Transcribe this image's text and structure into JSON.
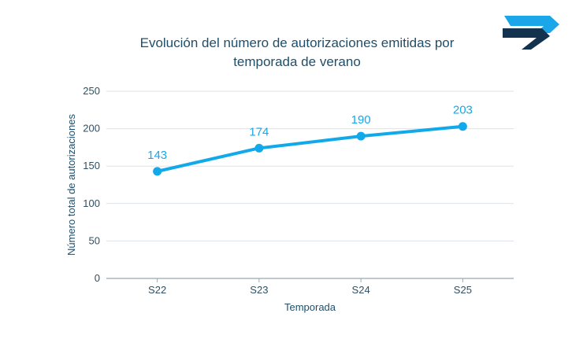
{
  "chart_data": {
    "type": "line",
    "title_lines": [
      "Evolución del número de autorizaciones emitidas por",
      "temporada de verano"
    ],
    "xlabel": "Temporada",
    "ylabel": "Número total de autorizaciones",
    "categories": [
      "S22",
      "S23",
      "S24",
      "S25"
    ],
    "series": [
      {
        "values": [
          143,
          174,
          190,
          203
        ]
      }
    ],
    "ylim": [
      0,
      250
    ],
    "yticks": [
      0,
      50,
      100,
      150,
      200,
      250
    ],
    "grid": true,
    "data_labels": true
  },
  "colors": {
    "line": "#12a9eb",
    "data_label": "#12a9eb",
    "grid": "#dce3e8",
    "axis": "#9aa8b2",
    "title": "#1f4e6b",
    "logo_dark": "#12324e",
    "logo_light": "#1aa6e8"
  },
  "logo": {
    "name": "brand-logo"
  }
}
